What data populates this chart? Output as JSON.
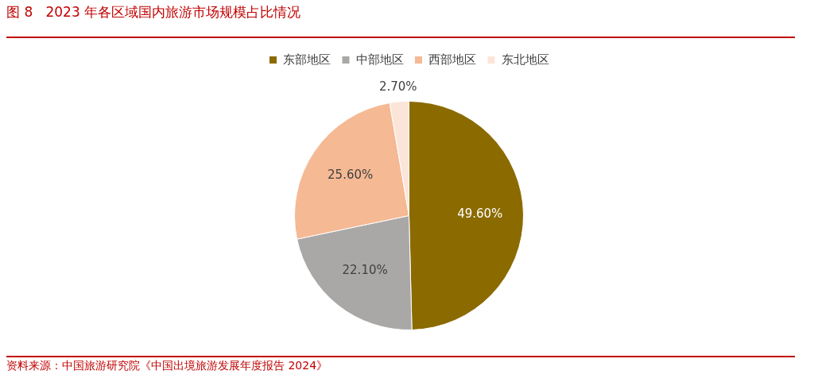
{
  "chart_data": {
    "type": "pie",
    "title": "图 8   2023 年各区域国内旅游市场规模占比情况",
    "categories": [
      "东部地区",
      "中部地区",
      "西部地区",
      "东北地区"
    ],
    "values": [
      49.6,
      22.1,
      25.6,
      2.7
    ],
    "colors": [
      "#8b6a00",
      "#a9a8a6",
      "#f5b994",
      "#fbe5d9"
    ],
    "value_labels": [
      "49.60%",
      "22.10%",
      "25.60%",
      "2.70%"
    ],
    "legend": "top",
    "annotations": [
      "资料来源：中国旅游研究院《中国出境旅游发展年度报告 2024》"
    ]
  }
}
